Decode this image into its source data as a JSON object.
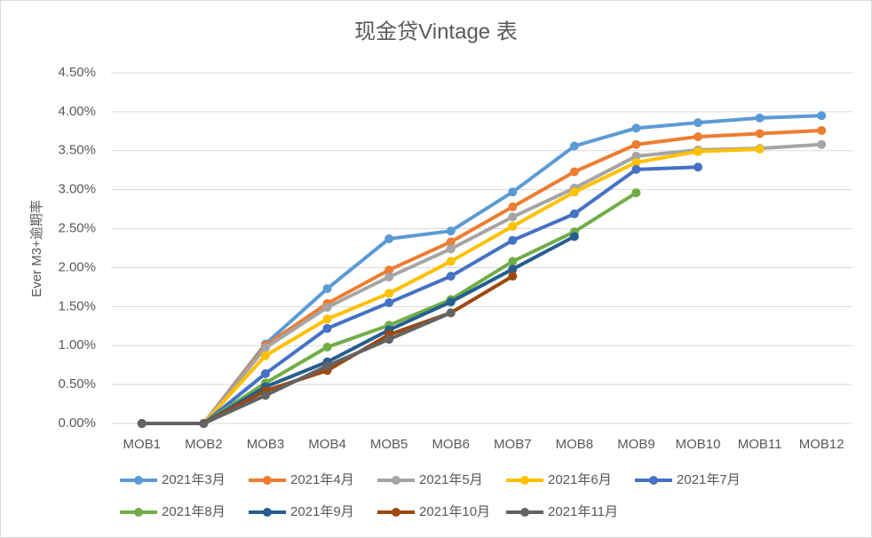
{
  "chart_data": {
    "type": "line",
    "title": "现金贷Vintage 表",
    "y_label": "Ever M3+逾期率",
    "categories": [
      "MOB1",
      "MOB2",
      "MOB3",
      "MOB4",
      "MOB5",
      "MOB6",
      "MOB7",
      "MOB8",
      "MOB9",
      "MOB10",
      "MOB11",
      "MOB12"
    ],
    "ylim": [
      0,
      4.5
    ],
    "yticks": [
      {
        "value": 0,
        "label": "0.00%"
      },
      {
        "value": 0.5,
        "label": "0.50%"
      },
      {
        "value": 1,
        "label": "1.00%"
      },
      {
        "value": 1.5,
        "label": "1.50%"
      },
      {
        "value": 2,
        "label": "2.00%"
      },
      {
        "value": 2.5,
        "label": "2.50%"
      },
      {
        "value": 3,
        "label": "3.00%"
      },
      {
        "value": 3.5,
        "label": "3.50%"
      },
      {
        "value": 4,
        "label": "4.00%"
      },
      {
        "value": 4.5,
        "label": "4.50%"
      }
    ],
    "grid": true,
    "legend": "bottom",
    "series": [
      {
        "name": "2021年3月",
        "color": "#5b9bd5",
        "values": [
          0,
          0,
          1.02,
          1.73,
          2.37,
          2.47,
          2.97,
          3.56,
          3.79,
          3.86,
          3.92,
          3.95
        ]
      },
      {
        "name": "2021年4月",
        "color": "#ed7d31",
        "values": [
          0,
          0,
          1.0,
          1.54,
          1.97,
          2.33,
          2.78,
          3.23,
          3.58,
          3.68,
          3.72,
          3.76
        ]
      },
      {
        "name": "2021年5月",
        "color": "#a5a5a5",
        "values": [
          0,
          0,
          0.97,
          1.49,
          1.88,
          2.24,
          2.65,
          3.02,
          3.43,
          3.51,
          3.53,
          3.58
        ]
      },
      {
        "name": "2021年6月",
        "color": "#ffc000",
        "values": [
          0,
          0,
          0.87,
          1.34,
          1.67,
          2.08,
          2.53,
          2.97,
          3.35,
          3.49,
          3.52,
          null
        ]
      },
      {
        "name": "2021年7月",
        "color": "#4472c4",
        "values": [
          0,
          0,
          0.64,
          1.22,
          1.55,
          1.89,
          2.35,
          2.69,
          3.26,
          3.29,
          null,
          null
        ]
      },
      {
        "name": "2021年8月",
        "color": "#70ad47",
        "values": [
          0,
          0,
          0.52,
          0.98,
          1.26,
          1.59,
          2.08,
          2.46,
          2.96,
          null,
          null,
          null
        ]
      },
      {
        "name": "2021年9月",
        "color": "#255e91",
        "values": [
          0,
          0,
          0.47,
          0.79,
          1.2,
          1.56,
          1.98,
          2.4,
          null,
          null,
          null,
          null
        ]
      },
      {
        "name": "2021年10月",
        "color": "#9e480e",
        "values": [
          0,
          0,
          0.42,
          0.68,
          1.14,
          1.42,
          1.89,
          null,
          null,
          null,
          null,
          null
        ]
      },
      {
        "name": "2021年11月",
        "color": "#636363",
        "values": [
          0,
          0,
          0.36,
          0.74,
          1.08,
          1.42,
          null,
          null,
          null,
          null,
          null,
          null
        ]
      }
    ]
  }
}
